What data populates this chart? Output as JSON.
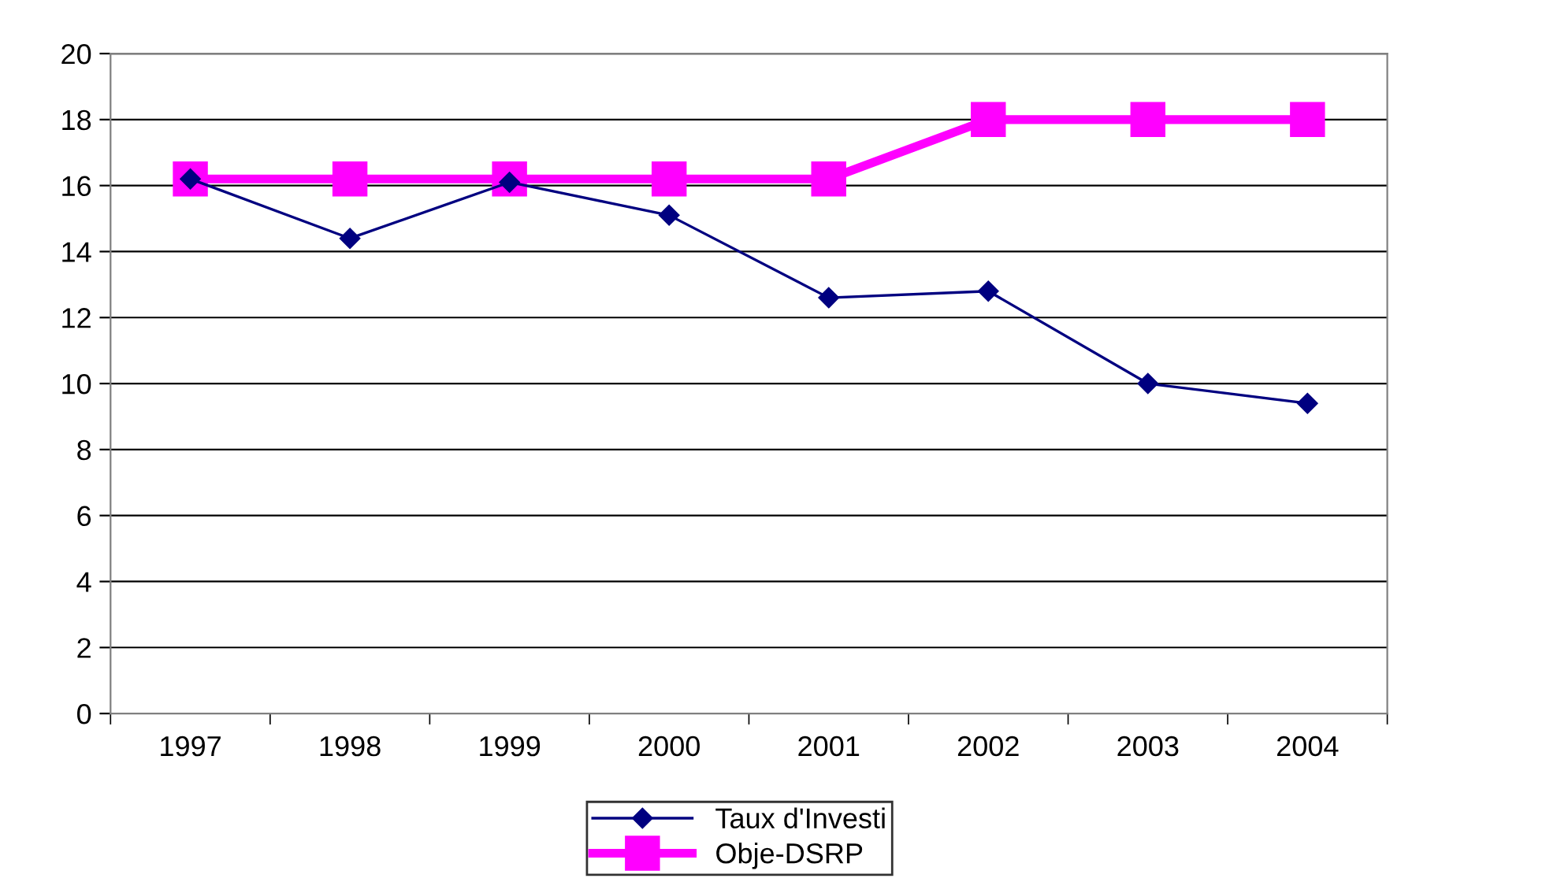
{
  "chart_data": {
    "type": "line",
    "categories": [
      "1997",
      "1998",
      "1999",
      "2000",
      "2001",
      "2002",
      "2003",
      "2004"
    ],
    "series": [
      {
        "name": "Taux d'Investi",
        "color": "#000080",
        "values": [
          16.2,
          14.4,
          16.1,
          15.1,
          12.6,
          12.8,
          10.0,
          9.4
        ],
        "marker": "diamond"
      },
      {
        "name": "Obje-DSRP",
        "color": "#ff00ff",
        "values": [
          16.2,
          16.2,
          16.2,
          16.2,
          16.2,
          18,
          18,
          18
        ],
        "marker": "square"
      }
    ],
    "ylim": [
      0,
      20
    ],
    "yticks": [
      0,
      2,
      4,
      6,
      8,
      10,
      12,
      14,
      16,
      18,
      20
    ],
    "grid": "y",
    "legend": "bottom",
    "line_style": "solid"
  }
}
